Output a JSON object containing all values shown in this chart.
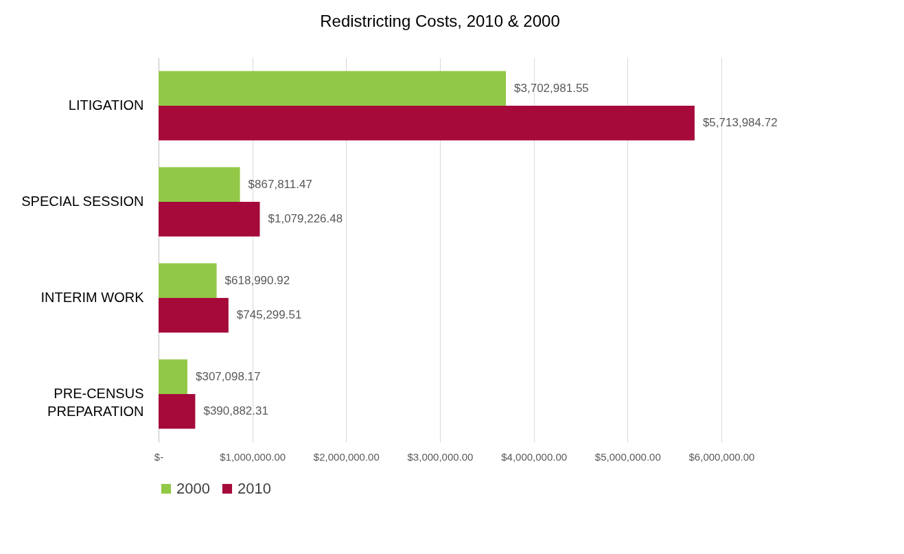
{
  "chart_data": {
    "type": "bar",
    "orientation": "horizontal",
    "title": "Redistricting Costs, 2010 & 2000",
    "categories": [
      "LITIGATION",
      "SPECIAL SESSION",
      "INTERIM WORK",
      "PRE-CENSUS PREPARATION"
    ],
    "series": [
      {
        "name": "2000",
        "color": "#92c847",
        "values": [
          3702981.55,
          867811.47,
          618990.92,
          307098.17
        ],
        "value_labels": [
          "$3,702,981.55",
          "$867,811.47",
          "$618,990.92",
          "$307,098.17"
        ]
      },
      {
        "name": "2010",
        "color": "#a50a3b",
        "values": [
          5713984.72,
          1079226.48,
          745299.51,
          390882.31
        ],
        "value_labels": [
          "$5,713,984.72",
          "$1,079,226.48",
          "$745,299.51",
          "$390,882.31"
        ]
      }
    ],
    "xlim": [
      0,
      6000000
    ],
    "xticks": [
      {
        "value": 0,
        "label": "$-"
      },
      {
        "value": 1000000,
        "label": "$1,000,000.00"
      },
      {
        "value": 2000000,
        "label": "$2,000,000.00"
      },
      {
        "value": 3000000,
        "label": "$3,000,000.00"
      },
      {
        "value": 4000000,
        "label": "$4,000,000.00"
      },
      {
        "value": 5000000,
        "label": "$5,000,000.00"
      },
      {
        "value": 6000000,
        "label": "$6,000,000.00"
      }
    ],
    "grid": "x",
    "legend": "bottom"
  }
}
